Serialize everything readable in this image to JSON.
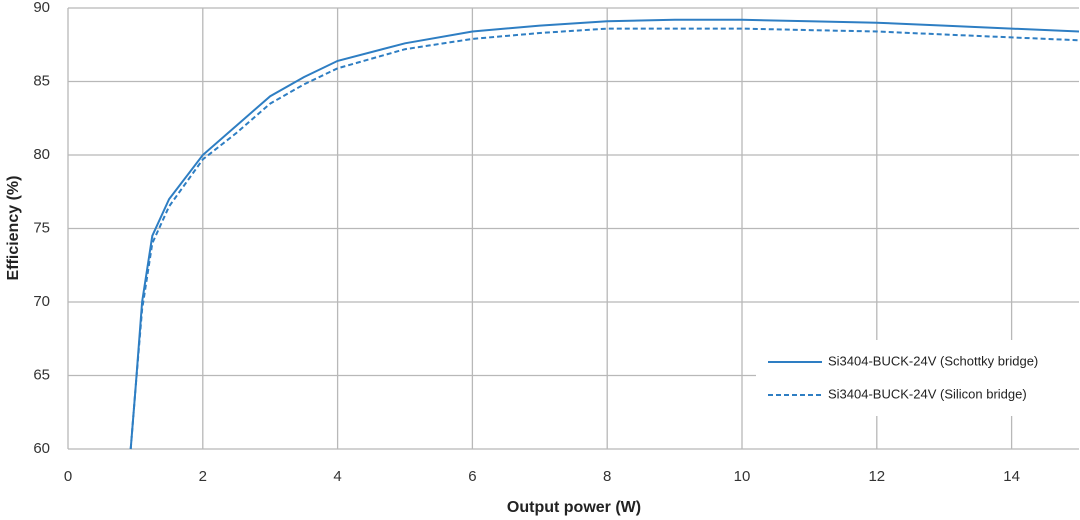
{
  "chart_data": {
    "type": "line",
    "x_label": "Output power (W)",
    "y_label": "Efficiency (%)",
    "xlim": [
      0,
      15
    ],
    "ylim": [
      60,
      90
    ],
    "xticks": [
      0,
      2,
      4,
      6,
      8,
      10,
      12,
      14
    ],
    "yticks": [
      60,
      65,
      70,
      75,
      80,
      85,
      90
    ],
    "grid": true,
    "legend": "lower-right",
    "x": [
      0.93,
      1.0,
      1.1,
      1.25,
      1.5,
      2,
      2.5,
      3,
      3.5,
      4,
      5,
      6,
      7,
      8,
      9,
      10,
      11,
      12,
      13,
      14,
      15
    ],
    "series": [
      {
        "name": "Si3404-BUCK-24V (Schottky bridge)",
        "color": "#2e7ec3",
        "line_style": "solid",
        "values": [
          60,
          64,
          70,
          74.5,
          77,
          80,
          82,
          84,
          85.3,
          86.4,
          87.6,
          88.4,
          88.8,
          89.1,
          89.2,
          89.2,
          89.1,
          89.0,
          88.8,
          88.6,
          88.4
        ]
      },
      {
        "name": "Si3404-BUCK-24V (Silicon bridge)",
        "color": "#2e7ec3",
        "line_style": "dashed",
        "values": [
          60,
          64,
          69.5,
          74,
          76.5,
          79.7,
          81.5,
          83.5,
          84.8,
          85.9,
          87.2,
          87.9,
          88.3,
          88.6,
          88.6,
          88.6,
          88.5,
          88.4,
          88.2,
          88.0,
          87.8
        ]
      }
    ]
  }
}
